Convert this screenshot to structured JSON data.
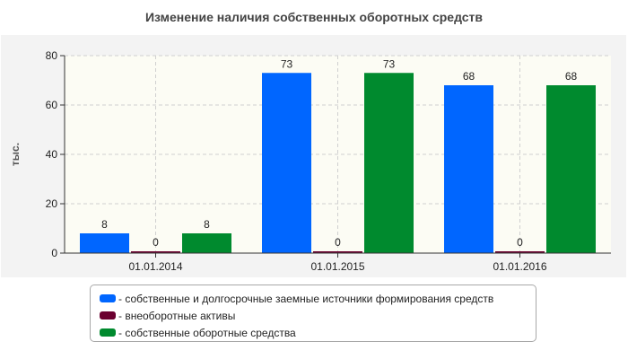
{
  "chart_data": {
    "type": "bar",
    "title": "Изменение наличия собственных оборотных средств",
    "ylabel": "тыс.",
    "xlabel": "",
    "ylim": [
      0,
      80
    ],
    "yticks": [
      0,
      20,
      40,
      60,
      80
    ],
    "grid": true,
    "legend_position": "bottom",
    "categories": [
      "01.01.2014",
      "01.01.2015",
      "01.01.2016"
    ],
    "series": [
      {
        "name": "- собственные и долгосрочные заемные источники формирования средств",
        "color": "#0066ff",
        "values": [
          8,
          73,
          68
        ]
      },
      {
        "name": "- внеоборотные активы",
        "color": "#6b0030",
        "values": [
          0,
          0,
          0
        ]
      },
      {
        "name": "- собственные оборотные средства",
        "color": "#008a2e",
        "values": [
          8,
          73,
          68
        ]
      }
    ]
  }
}
